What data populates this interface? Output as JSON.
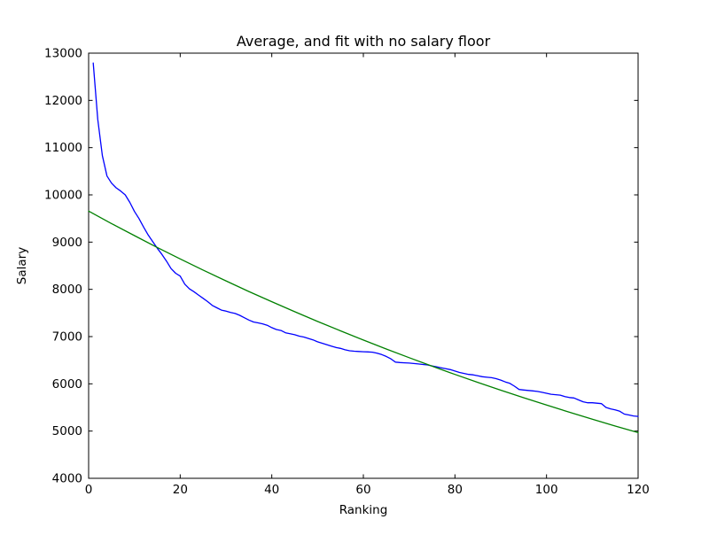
{
  "chart_data": {
    "type": "line",
    "title": "Average, and fit with no salary floor",
    "xlabel": "Ranking",
    "ylabel": "Salary",
    "xlim": [
      0,
      120
    ],
    "ylim": [
      4000,
      13000
    ],
    "xticks": [
      0,
      20,
      40,
      60,
      80,
      100,
      120
    ],
    "yticks": [
      4000,
      5000,
      6000,
      7000,
      8000,
      9000,
      10000,
      11000,
      12000,
      13000
    ],
    "grid": false,
    "legend": "none",
    "frame_color": "#000000",
    "background_color": "#ffffff",
    "series": [
      {
        "name": "average-salary-by-ranking",
        "color": "#0000ff",
        "x_start": 1,
        "x_step": 1,
        "values": [
          12790,
          11600,
          10830,
          10400,
          10250,
          10150,
          10080,
          10000,
          9840,
          9650,
          9500,
          9320,
          9150,
          9010,
          8870,
          8740,
          8600,
          8440,
          8340,
          8280,
          8110,
          8010,
          7950,
          7880,
          7810,
          7740,
          7660,
          7610,
          7560,
          7540,
          7510,
          7490,
          7450,
          7400,
          7350,
          7310,
          7290,
          7270,
          7240,
          7190,
          7150,
          7130,
          7080,
          7060,
          7040,
          7010,
          6990,
          6960,
          6930,
          6890,
          6860,
          6830,
          6800,
          6770,
          6750,
          6720,
          6700,
          6690,
          6685,
          6680,
          6675,
          6670,
          6650,
          6620,
          6580,
          6530,
          6460,
          6450,
          6445,
          6440,
          6430,
          6420,
          6410,
          6400,
          6380,
          6360,
          6340,
          6320,
          6300,
          6270,
          6240,
          6220,
          6200,
          6190,
          6170,
          6150,
          6140,
          6130,
          6110,
          6080,
          6040,
          6010,
          5950,
          5880,
          5870,
          5860,
          5850,
          5840,
          5820,
          5800,
          5780,
          5770,
          5760,
          5730,
          5710,
          5700,
          5660,
          5620,
          5600,
          5600,
          5590,
          5580,
          5500,
          5470,
          5450,
          5420,
          5360,
          5340,
          5320,
          5310
        ]
      },
      {
        "name": "exponential-fit-no-salary-floor",
        "color": "#008000",
        "points": [
          [
            0,
            9657
          ],
          [
            5,
            9393
          ],
          [
            10,
            9137
          ],
          [
            15,
            8887
          ],
          [
            20,
            8644
          ],
          [
            25,
            8408
          ],
          [
            30,
            8179
          ],
          [
            35,
            7955
          ],
          [
            40,
            7738
          ],
          [
            45,
            7526
          ],
          [
            50,
            7321
          ],
          [
            55,
            7121
          ],
          [
            60,
            6926
          ],
          [
            65,
            6737
          ],
          [
            70,
            6553
          ],
          [
            75,
            6374
          ],
          [
            80,
            6200
          ],
          [
            85,
            6031
          ],
          [
            90,
            5866
          ],
          [
            95,
            5706
          ],
          [
            100,
            5550
          ],
          [
            105,
            5398
          ],
          [
            110,
            5251
          ],
          [
            115,
            5107
          ],
          [
            120,
            4968
          ]
        ]
      }
    ]
  }
}
